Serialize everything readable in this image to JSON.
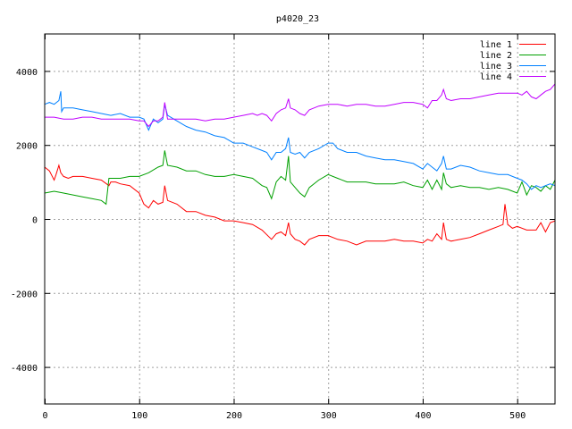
{
  "chart_data": {
    "type": "line",
    "title": "p4020_23",
    "xlabel": "",
    "ylabel": "",
    "xlim": [
      0,
      540
    ],
    "ylim": [
      -5000,
      5000
    ],
    "xticks": [
      0,
      100,
      200,
      300,
      400,
      500
    ],
    "yticks": [
      -4000,
      -2000,
      0,
      2000,
      4000
    ],
    "grid": true,
    "legend_position": "top-right",
    "series": [
      {
        "name": "line 1",
        "color": "#ff0000",
        "x": [
          0,
          5,
          10,
          12,
          15,
          17,
          20,
          25,
          30,
          40,
          50,
          60,
          68,
          70,
          75,
          80,
          90,
          100,
          105,
          110,
          115,
          120,
          125,
          127,
          130,
          140,
          150,
          160,
          170,
          180,
          190,
          200,
          210,
          220,
          230,
          240,
          245,
          250,
          255,
          258,
          260,
          265,
          270,
          275,
          280,
          290,
          300,
          310,
          320,
          330,
          340,
          350,
          360,
          370,
          380,
          390,
          400,
          405,
          410,
          415,
          420,
          422,
          425,
          430,
          440,
          450,
          460,
          470,
          480,
          485,
          487,
          490,
          495,
          500,
          510,
          520,
          525,
          530,
          535,
          540
        ],
        "y": [
          1400,
          1300,
          1050,
          1200,
          1450,
          1250,
          1150,
          1100,
          1150,
          1150,
          1100,
          1050,
          900,
          1000,
          1000,
          950,
          900,
          700,
          400,
          300,
          500,
          400,
          450,
          900,
          500,
          400,
          200,
          200,
          100,
          50,
          -50,
          -50,
          -100,
          -150,
          -300,
          -550,
          -400,
          -350,
          -450,
          -100,
          -400,
          -550,
          -600,
          -700,
          -550,
          -450,
          -450,
          -550,
          -600,
          -700,
          -600,
          -600,
          -600,
          -550,
          -600,
          -600,
          -650,
          -550,
          -600,
          -400,
          -550,
          -100,
          -550,
          -600,
          -550,
          -500,
          -400,
          -300,
          -200,
          -150,
          400,
          -150,
          -250,
          -200,
          -300,
          -300,
          -100,
          -350,
          -100,
          -50
        ]
      },
      {
        "name": "line 2",
        "color": "#00a000",
        "x": [
          0,
          10,
          20,
          30,
          40,
          50,
          60,
          65,
          68,
          70,
          75,
          80,
          90,
          100,
          110,
          120,
          125,
          127,
          130,
          140,
          150,
          160,
          170,
          180,
          190,
          200,
          210,
          220,
          230,
          235,
          240,
          245,
          250,
          255,
          258,
          260,
          265,
          270,
          275,
          280,
          290,
          300,
          310,
          320,
          330,
          340,
          350,
          360,
          370,
          380,
          390,
          400,
          405,
          410,
          415,
          420,
          422,
          425,
          430,
          440,
          450,
          460,
          470,
          480,
          490,
          500,
          505,
          510,
          515,
          520,
          525,
          530,
          535,
          540
        ],
        "y": [
          700,
          750,
          700,
          650,
          600,
          550,
          500,
          400,
          1100,
          1100,
          1100,
          1100,
          1150,
          1150,
          1250,
          1400,
          1450,
          1850,
          1450,
          1400,
          1300,
          1300,
          1200,
          1150,
          1150,
          1200,
          1150,
          1100,
          900,
          850,
          550,
          1000,
          1150,
          1050,
          1700,
          1000,
          850,
          700,
          600,
          850,
          1050,
          1200,
          1100,
          1000,
          1000,
          1000,
          950,
          950,
          950,
          1000,
          900,
          850,
          1050,
          800,
          1050,
          800,
          1250,
          950,
          850,
          900,
          850,
          850,
          800,
          850,
          800,
          700,
          1000,
          650,
          900,
          850,
          750,
          900,
          800,
          1050
        ]
      },
      {
        "name": "line 3",
        "color": "#0080ff",
        "x": [
          0,
          5,
          10,
          15,
          17,
          18,
          20,
          25,
          30,
          40,
          50,
          60,
          70,
          80,
          90,
          100,
          105,
          110,
          115,
          120,
          125,
          127,
          130,
          140,
          150,
          160,
          170,
          180,
          190,
          200,
          210,
          220,
          230,
          235,
          240,
          245,
          250,
          255,
          258,
          260,
          265,
          270,
          275,
          280,
          290,
          300,
          305,
          310,
          320,
          330,
          340,
          350,
          360,
          370,
          380,
          390,
          400,
          405,
          410,
          415,
          420,
          422,
          425,
          430,
          440,
          450,
          460,
          470,
          480,
          490,
          500,
          505,
          510,
          515,
          520,
          525,
          530,
          535,
          540
        ],
        "y": [
          3100,
          3150,
          3100,
          3200,
          3450,
          2900,
          3000,
          3000,
          3000,
          2950,
          2900,
          2850,
          2800,
          2850,
          2750,
          2750,
          2700,
          2400,
          2700,
          2600,
          2700,
          3100,
          2800,
          2650,
          2500,
          2400,
          2350,
          2250,
          2200,
          2050,
          2050,
          1950,
          1850,
          1800,
          1600,
          1800,
          1800,
          1900,
          2200,
          1800,
          1750,
          1800,
          1650,
          1800,
          1900,
          2050,
          2050,
          1900,
          1800,
          1800,
          1700,
          1650,
          1600,
          1600,
          1550,
          1500,
          1350,
          1500,
          1400,
          1300,
          1500,
          1700,
          1350,
          1350,
          1450,
          1400,
          1300,
          1250,
          1200,
          1200,
          1100,
          1050,
          950,
          800,
          900,
          850,
          900,
          950,
          900
        ]
      },
      {
        "name": "line 4",
        "color": "#c000ff",
        "x": [
          0,
          10,
          20,
          30,
          40,
          50,
          60,
          70,
          80,
          90,
          100,
          105,
          110,
          115,
          120,
          125,
          127,
          130,
          140,
          150,
          160,
          170,
          180,
          190,
          200,
          210,
          220,
          225,
          230,
          235,
          240,
          245,
          250,
          255,
          258,
          260,
          265,
          270,
          275,
          280,
          290,
          300,
          310,
          320,
          330,
          340,
          350,
          360,
          370,
          380,
          390,
          400,
          405,
          410,
          415,
          420,
          422,
          425,
          430,
          440,
          450,
          460,
          470,
          480,
          490,
          500,
          505,
          510,
          515,
          520,
          525,
          530,
          535,
          540
        ],
        "y": [
          2750,
          2750,
          2700,
          2700,
          2750,
          2750,
          2700,
          2700,
          2700,
          2700,
          2650,
          2650,
          2500,
          2650,
          2650,
          2750,
          3150,
          2700,
          2700,
          2700,
          2700,
          2650,
          2700,
          2700,
          2750,
          2800,
          2850,
          2800,
          2850,
          2800,
          2650,
          2850,
          2950,
          3000,
          3250,
          3000,
          2950,
          2850,
          2800,
          2950,
          3050,
          3100,
          3100,
          3050,
          3100,
          3100,
          3050,
          3050,
          3100,
          3150,
          3150,
          3100,
          3000,
          3200,
          3200,
          3350,
          3500,
          3250,
          3200,
          3250,
          3250,
          3300,
          3350,
          3400,
          3400,
          3400,
          3350,
          3450,
          3300,
          3250,
          3350,
          3450,
          3500,
          3650
        ]
      }
    ]
  }
}
